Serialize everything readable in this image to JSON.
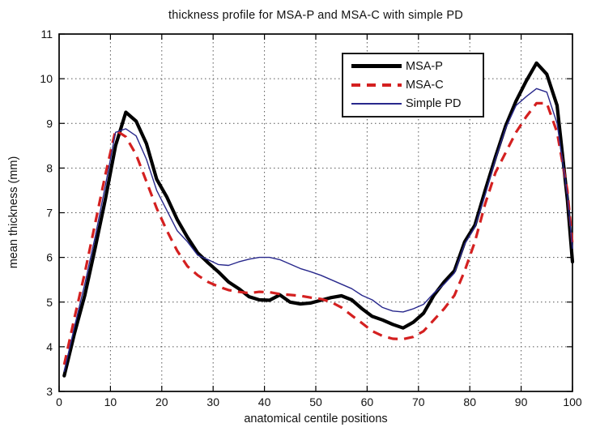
{
  "chart_data": {
    "type": "line",
    "title": "thickness profile for MSA-P and MSA-C with simple PD",
    "xlabel": "anatomical centile positions",
    "ylabel": "mean thickness (mm)",
    "xlim": [
      0,
      100
    ],
    "ylim": [
      3,
      11
    ],
    "xticks": [
      0,
      10,
      20,
      30,
      40,
      50,
      60,
      70,
      80,
      90,
      100
    ],
    "yticks": [
      3,
      4,
      5,
      6,
      7,
      8,
      9,
      10,
      11
    ],
    "grid": "dotted",
    "legend_position": "inside upper center-right",
    "background": "#ffffff",
    "grid_color": "#555555",
    "x": [
      1,
      3,
      5,
      7,
      9,
      11,
      13,
      15,
      17,
      19,
      21,
      23,
      25,
      27,
      29,
      31,
      33,
      35,
      37,
      39,
      41,
      43,
      45,
      47,
      49,
      51,
      53,
      55,
      57,
      59,
      61,
      63,
      65,
      67,
      69,
      71,
      73,
      75,
      77,
      79,
      81,
      83,
      85,
      87,
      89,
      91,
      93,
      95,
      97,
      99,
      100
    ],
    "series": [
      {
        "name": "MSA-P",
        "color": "#000000",
        "style": "solid",
        "width": 4.2,
        "values": [
          3.35,
          4.3,
          5.15,
          6.2,
          7.3,
          8.5,
          9.25,
          9.05,
          8.55,
          7.75,
          7.35,
          6.85,
          6.45,
          6.1,
          5.88,
          5.68,
          5.45,
          5.3,
          5.12,
          5.05,
          5.04,
          5.16,
          5.0,
          4.96,
          4.98,
          5.04,
          5.1,
          5.14,
          5.05,
          4.85,
          4.68,
          4.6,
          4.5,
          4.42,
          4.55,
          4.75,
          5.15,
          5.45,
          5.7,
          6.35,
          6.72,
          7.5,
          8.25,
          8.95,
          9.5,
          9.95,
          10.35,
          10.1,
          9.4,
          7.3,
          5.9
        ]
      },
      {
        "name": "MSA-C",
        "color": "#d42020",
        "style": "dashed",
        "width": 3.2,
        "values": [
          3.6,
          4.65,
          5.65,
          6.75,
          7.85,
          8.85,
          8.7,
          8.3,
          7.7,
          7.1,
          6.6,
          6.15,
          5.8,
          5.6,
          5.45,
          5.35,
          5.27,
          5.23,
          5.2,
          5.23,
          5.22,
          5.18,
          5.16,
          5.14,
          5.1,
          5.07,
          5.0,
          4.88,
          4.7,
          4.53,
          4.35,
          4.24,
          4.18,
          4.17,
          4.22,
          4.35,
          4.6,
          4.85,
          5.15,
          5.7,
          6.35,
          7.2,
          7.9,
          8.35,
          8.8,
          9.15,
          9.45,
          9.45,
          8.8,
          7.5,
          6.3
        ]
      },
      {
        "name": "Simple PD",
        "color": "#28288c",
        "style": "solid",
        "width": 1.4,
        "values": [
          3.45,
          4.45,
          5.4,
          6.45,
          7.6,
          8.8,
          8.88,
          8.72,
          8.2,
          7.5,
          7.05,
          6.6,
          6.35,
          6.05,
          5.95,
          5.84,
          5.82,
          5.9,
          5.96,
          6.0,
          6.0,
          5.95,
          5.85,
          5.75,
          5.68,
          5.6,
          5.5,
          5.4,
          5.3,
          5.15,
          5.05,
          4.88,
          4.8,
          4.78,
          4.85,
          4.95,
          5.2,
          5.4,
          5.65,
          6.3,
          6.68,
          7.4,
          8.2,
          8.9,
          9.4,
          9.6,
          9.78,
          9.7,
          9.0,
          7.4,
          6.2
        ]
      }
    ]
  }
}
